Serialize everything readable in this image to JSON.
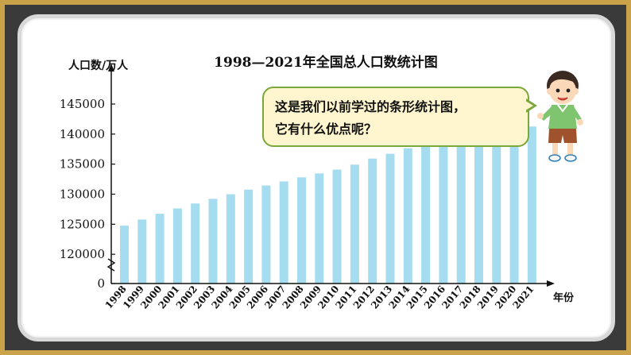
{
  "chart_data": {
    "type": "bar",
    "title": "1998—2021年全国总人口数统计图",
    "ylabel": "人口数/万人",
    "xlabel": "年份",
    "ylim": [
      115000,
      145000
    ],
    "axis_break": true,
    "y_ticks": [
      "145000",
      "140000",
      "135000",
      "130000",
      "125000",
      "120000",
      "0"
    ],
    "categories": [
      "1998",
      "1999",
      "2000",
      "2001",
      "2002",
      "2003",
      "2004",
      "2005",
      "2006",
      "2007",
      "2008",
      "2009",
      "2010",
      "2011",
      "2012",
      "2013",
      "2014",
      "2015",
      "2016",
      "2017",
      "2018",
      "2019",
      "2020",
      "2021"
    ],
    "values": [
      124761,
      125786,
      126743,
      127627,
      128453,
      129227,
      129988,
      130756,
      131448,
      132129,
      132802,
      133450,
      134091,
      134916,
      135922,
      136726,
      137646,
      138326,
      139232,
      140011,
      140541,
      141008,
      141212,
      141260
    ],
    "bar_color": "#a6dcef",
    "grid": false
  },
  "speech_bubble": {
    "line1": "这是我们以前学过的条形统计图，",
    "line2": "它有什么优点呢？"
  },
  "colors": {
    "frame": "#3a3a3a",
    "frame_border": "#c9a24a",
    "bubble_fill": "#fff6cf",
    "bubble_border": "#7aa83a"
  }
}
